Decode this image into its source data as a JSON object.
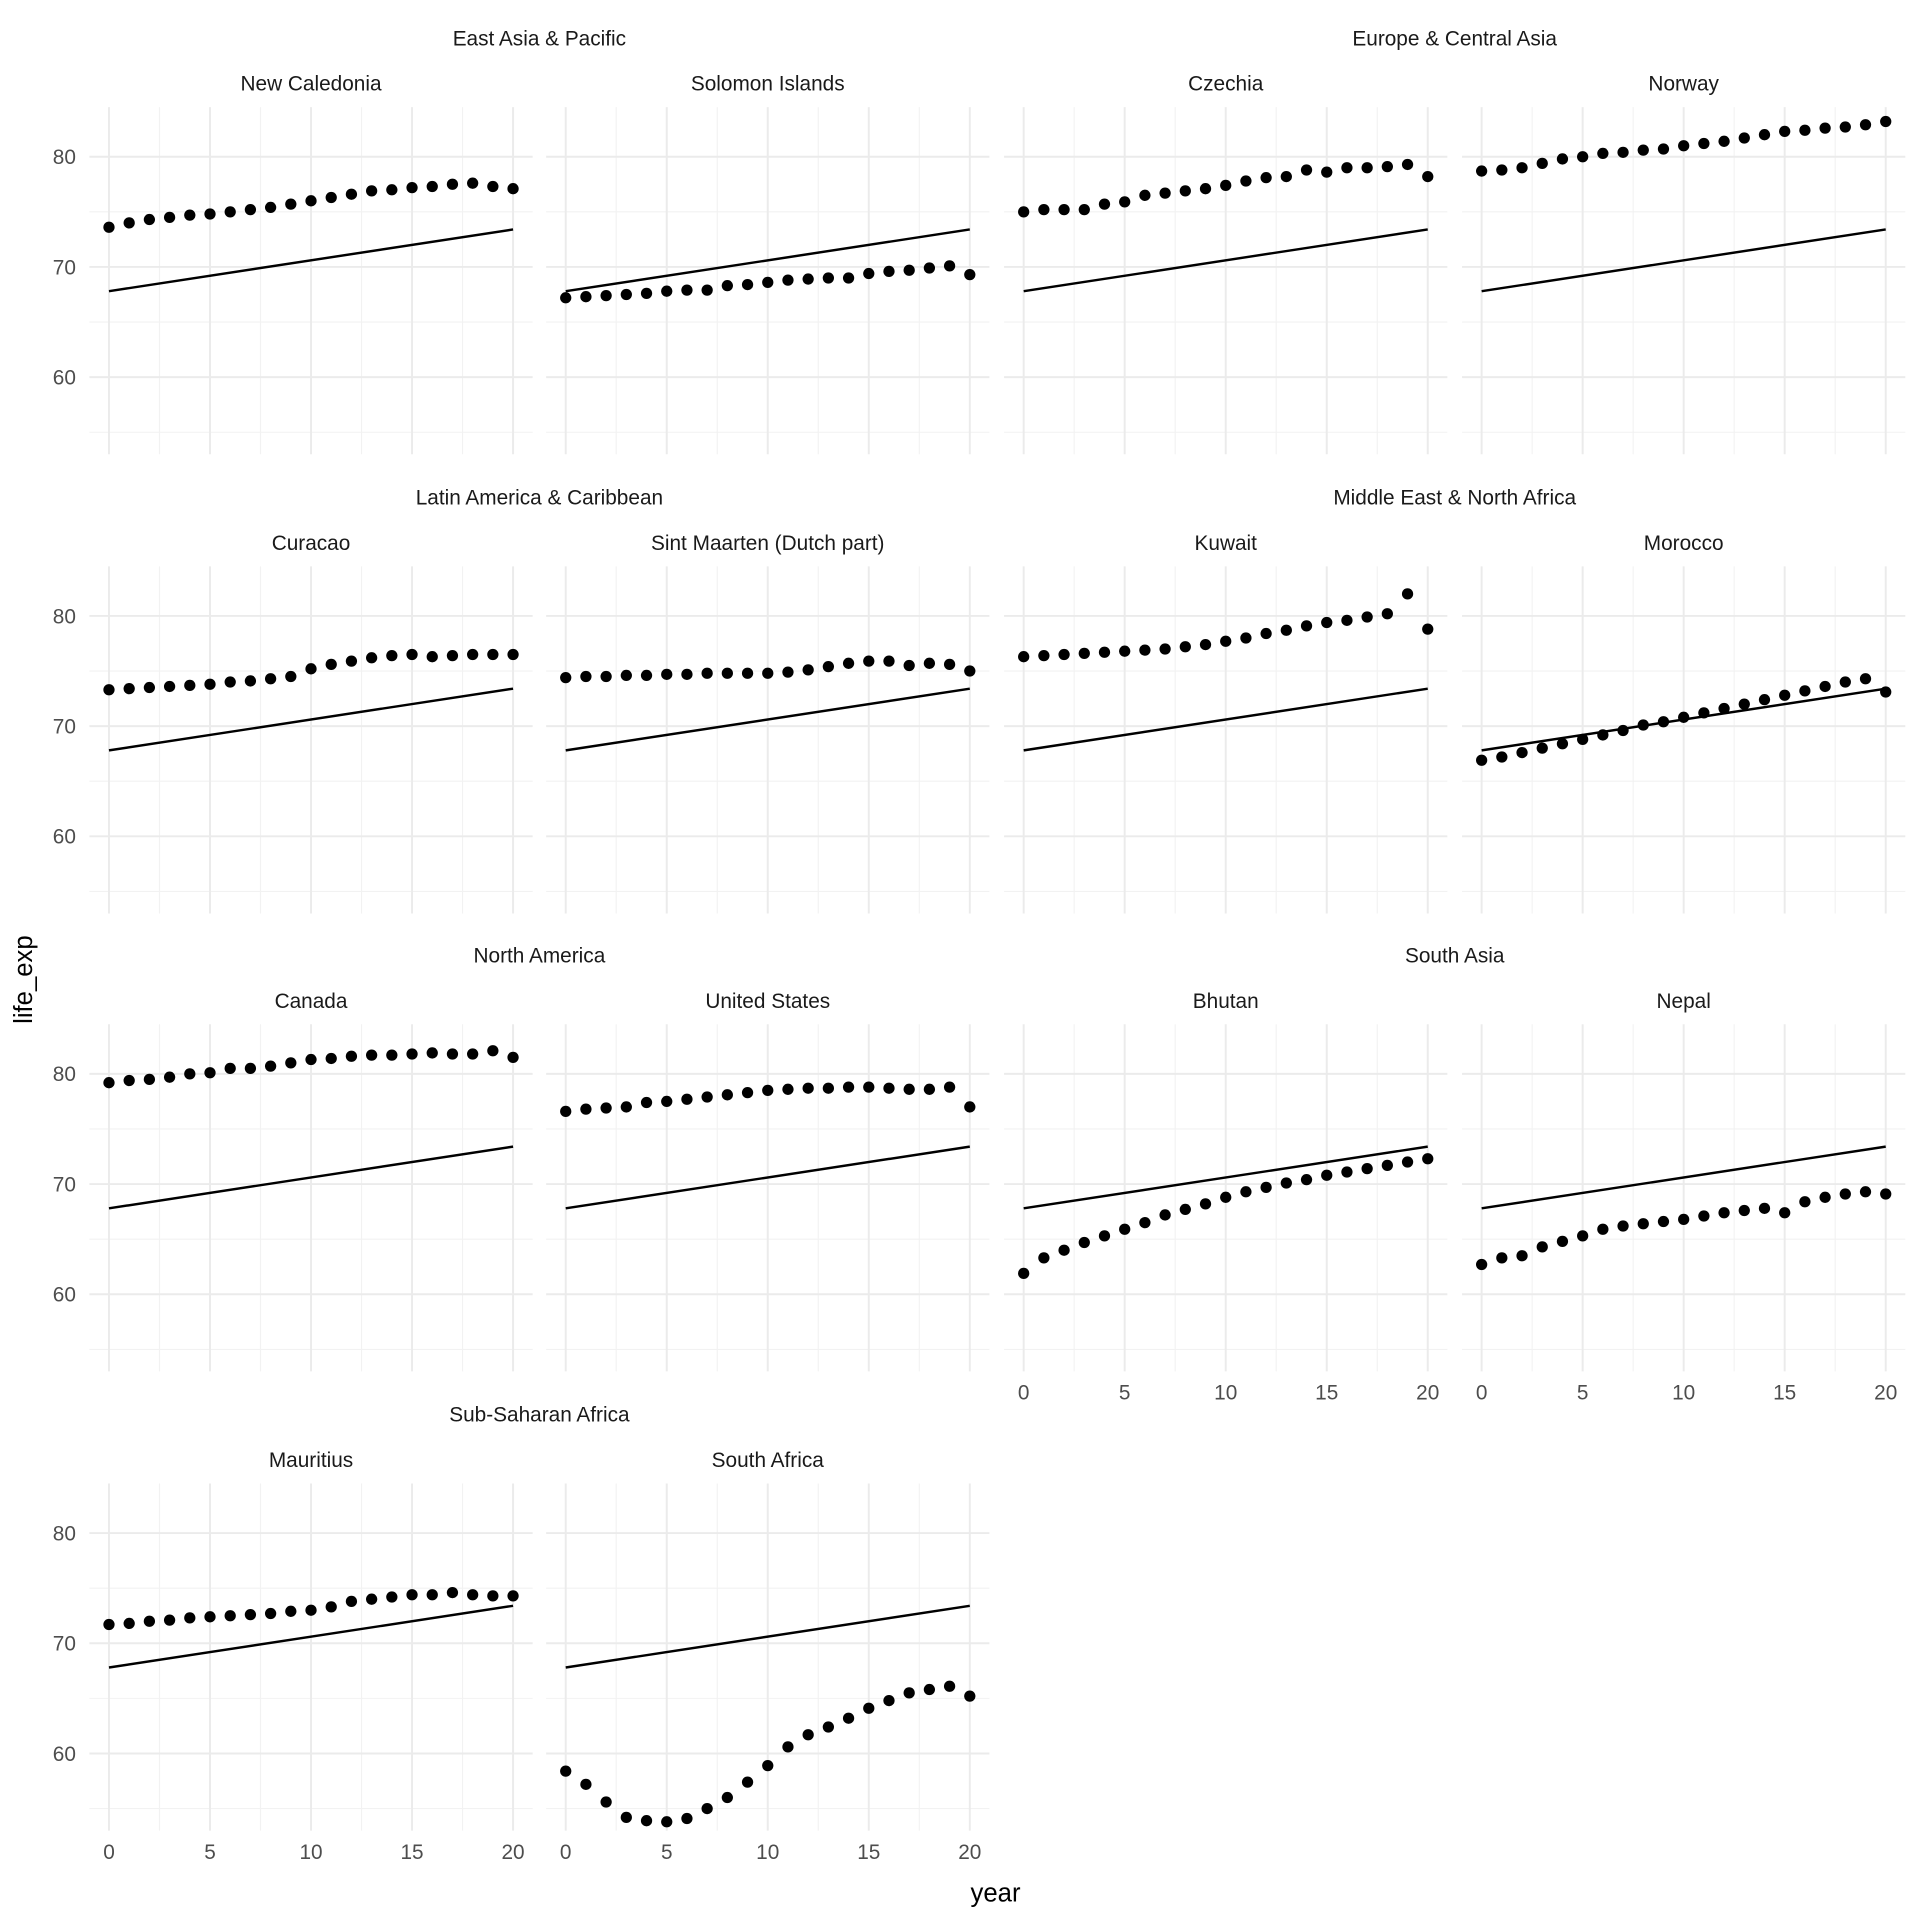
{
  "chart_data": {
    "type": "scatter",
    "xlabel": "year",
    "ylabel": "life_exp",
    "xlim": [
      0,
      20
    ],
    "ylim": [
      53,
      84.5
    ],
    "x_ticks": [
      0,
      5,
      10,
      15,
      20
    ],
    "y_ticks": [
      60,
      70,
      80
    ],
    "grid": true,
    "reference_line": {
      "x": [
        0,
        20
      ],
      "y": [
        67.8,
        73.4
      ]
    },
    "regions": [
      {
        "name": "East Asia & Pacific",
        "facets": [
          0,
          1
        ]
      },
      {
        "name": "Europe & Central Asia",
        "facets": [
          2,
          3
        ]
      },
      {
        "name": "Latin America & Caribbean",
        "facets": [
          4,
          5
        ]
      },
      {
        "name": "Middle East & North Africa",
        "facets": [
          6,
          7
        ]
      },
      {
        "name": "North America",
        "facets": [
          8,
          9
        ]
      },
      {
        "name": "South Asia",
        "facets": [
          10,
          11
        ]
      },
      {
        "name": "Sub-Saharan Africa",
        "facets": [
          12,
          13
        ]
      }
    ],
    "x": [
      0,
      1,
      2,
      3,
      4,
      5,
      6,
      7,
      8,
      9,
      10,
      11,
      12,
      13,
      14,
      15,
      16,
      17,
      18,
      19,
      20
    ],
    "facets": [
      {
        "country": "New Caledonia",
        "values": [
          73.6,
          74.0,
          74.3,
          74.5,
          74.7,
          74.8,
          75.0,
          75.2,
          75.4,
          75.7,
          76.0,
          76.3,
          76.6,
          76.9,
          77.0,
          77.2,
          77.3,
          77.5,
          77.6,
          77.3,
          77.1
        ]
      },
      {
        "country": "Solomon Islands",
        "values": [
          67.2,
          67.3,
          67.4,
          67.5,
          67.6,
          67.8,
          67.9,
          67.9,
          68.3,
          68.4,
          68.6,
          68.8,
          68.9,
          69.0,
          69.0,
          69.4,
          69.6,
          69.7,
          69.9,
          70.1,
          69.3
        ]
      },
      {
        "country": "Czechia",
        "values": [
          75.0,
          75.2,
          75.2,
          75.2,
          75.7,
          75.9,
          76.5,
          76.7,
          76.9,
          77.1,
          77.4,
          77.8,
          78.1,
          78.2,
          78.8,
          78.6,
          79.0,
          79.0,
          79.1,
          79.3,
          78.2
        ]
      },
      {
        "country": "Norway",
        "values": [
          78.7,
          78.8,
          79.0,
          79.4,
          79.8,
          80.0,
          80.3,
          80.4,
          80.6,
          80.7,
          81.0,
          81.2,
          81.4,
          81.7,
          82.0,
          82.3,
          82.4,
          82.6,
          82.7,
          82.9,
          83.2
        ]
      },
      {
        "country": "Curacao",
        "values": [
          73.3,
          73.4,
          73.5,
          73.6,
          73.7,
          73.8,
          74.0,
          74.1,
          74.3,
          74.5,
          75.2,
          75.6,
          75.9,
          76.2,
          76.4,
          76.5,
          76.3,
          76.4,
          76.5,
          76.5,
          76.5
        ]
      },
      {
        "country": "Sint Maarten (Dutch part)",
        "values": [
          74.4,
          74.5,
          74.5,
          74.6,
          74.6,
          74.7,
          74.7,
          74.8,
          74.8,
          74.8,
          74.8,
          74.9,
          75.1,
          75.4,
          75.7,
          75.9,
          75.9,
          75.5,
          75.7,
          75.6,
          75.0
        ]
      },
      {
        "country": "Kuwait",
        "values": [
          76.3,
          76.4,
          76.5,
          76.6,
          76.7,
          76.8,
          76.9,
          77.0,
          77.2,
          77.4,
          77.7,
          78.0,
          78.4,
          78.7,
          79.1,
          79.4,
          79.6,
          79.9,
          80.2,
          82.0,
          78.8
        ]
      },
      {
        "country": "Morocco",
        "values": [
          66.9,
          67.2,
          67.6,
          68.0,
          68.4,
          68.8,
          69.2,
          69.6,
          70.1,
          70.4,
          70.8,
          71.2,
          71.6,
          72.0,
          72.4,
          72.8,
          73.2,
          73.6,
          74.0,
          74.3,
          73.1
        ]
      },
      {
        "country": "Canada",
        "values": [
          79.2,
          79.4,
          79.5,
          79.7,
          80.0,
          80.1,
          80.5,
          80.5,
          80.7,
          81.0,
          81.3,
          81.4,
          81.6,
          81.7,
          81.7,
          81.8,
          81.9,
          81.8,
          81.8,
          82.1,
          81.5
        ]
      },
      {
        "country": "United States",
        "values": [
          76.6,
          76.8,
          76.9,
          77.0,
          77.4,
          77.5,
          77.7,
          77.9,
          78.1,
          78.3,
          78.5,
          78.6,
          78.7,
          78.7,
          78.8,
          78.8,
          78.7,
          78.6,
          78.6,
          78.8,
          77.0
        ]
      },
      {
        "country": "Bhutan",
        "values": [
          61.9,
          63.3,
          64.0,
          64.7,
          65.3,
          65.9,
          66.5,
          67.2,
          67.7,
          68.2,
          68.8,
          69.3,
          69.7,
          70.1,
          70.4,
          70.8,
          71.1,
          71.4,
          71.7,
          72.0,
          72.3
        ]
      },
      {
        "country": "Nepal",
        "values": [
          62.7,
          63.3,
          63.5,
          64.3,
          64.8,
          65.3,
          65.9,
          66.2,
          66.4,
          66.6,
          66.8,
          67.1,
          67.4,
          67.6,
          67.8,
          67.4,
          68.4,
          68.8,
          69.1,
          69.3,
          69.1
        ]
      },
      {
        "country": "Mauritius",
        "values": [
          71.7,
          71.8,
          72.0,
          72.1,
          72.3,
          72.4,
          72.5,
          72.6,
          72.7,
          72.9,
          73.0,
          73.3,
          73.8,
          74.0,
          74.2,
          74.4,
          74.4,
          74.6,
          74.4,
          74.3,
          74.3
        ]
      },
      {
        "country": "South Africa",
        "values": [
          58.4,
          57.2,
          55.6,
          54.2,
          53.9,
          53.8,
          54.1,
          55.0,
          56.0,
          57.4,
          58.9,
          60.6,
          61.7,
          62.4,
          63.2,
          64.1,
          64.8,
          65.5,
          65.8,
          66.1,
          65.2
        ]
      }
    ]
  }
}
